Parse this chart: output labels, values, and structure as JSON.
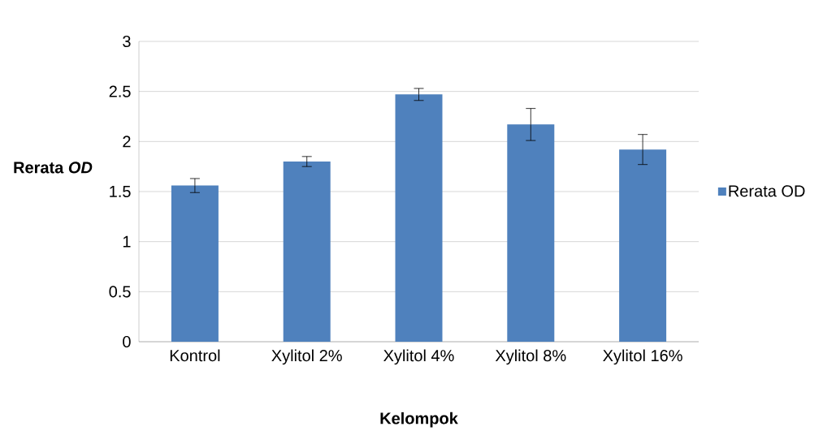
{
  "chart_data": {
    "type": "bar",
    "xlabel": "Kelompok",
    "ylabel": "Rerata *OD*",
    "categories": [
      "Kontrol",
      "Xylitol 2%",
      "Xylitol 4%",
      "Xylitol 8%",
      "Xylitol 16%"
    ],
    "series": [
      {
        "name": "Rerata OD",
        "color": "#4f81bd",
        "values": [
          1.56,
          1.8,
          2.47,
          2.17,
          1.92
        ],
        "errors": [
          0.07,
          0.05,
          0.06,
          0.16,
          0.15
        ]
      }
    ],
    "ylim": [
      0,
      3
    ],
    "yticks": [
      0,
      0.5,
      1,
      1.5,
      2,
      2.5,
      3
    ],
    "grid": "y",
    "legend": "right"
  }
}
